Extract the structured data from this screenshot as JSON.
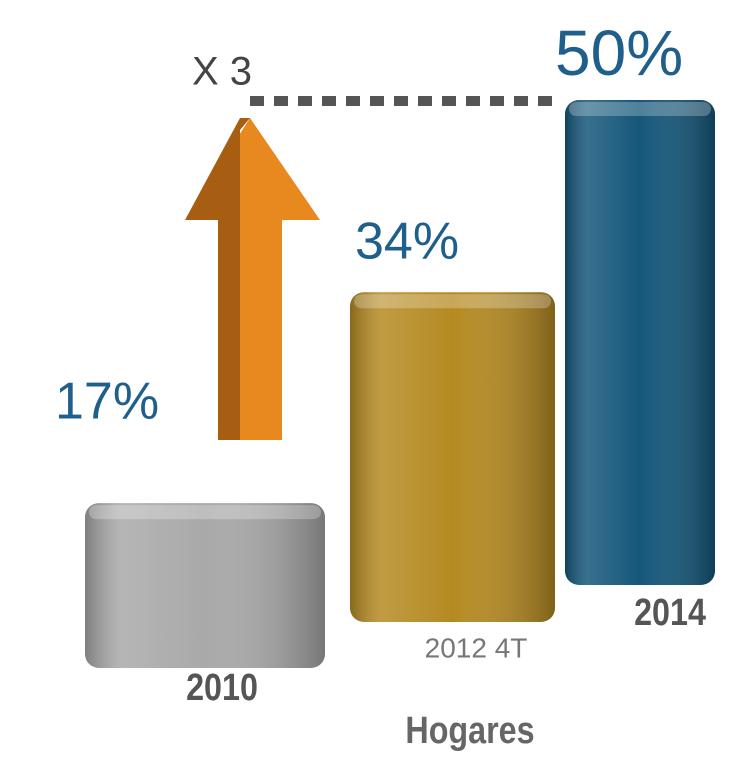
{
  "chart_data": {
    "type": "bar",
    "categories": [
      "2010",
      "2012 4T",
      "2014"
    ],
    "values": [
      17,
      34,
      50
    ],
    "value_labels": [
      "17%",
      "34%",
      "50%"
    ],
    "colors": [
      "#a9a9a9",
      "#b58a22",
      "#15577a"
    ],
    "xlabel": "Hogares",
    "annotation": "X 3"
  }
}
